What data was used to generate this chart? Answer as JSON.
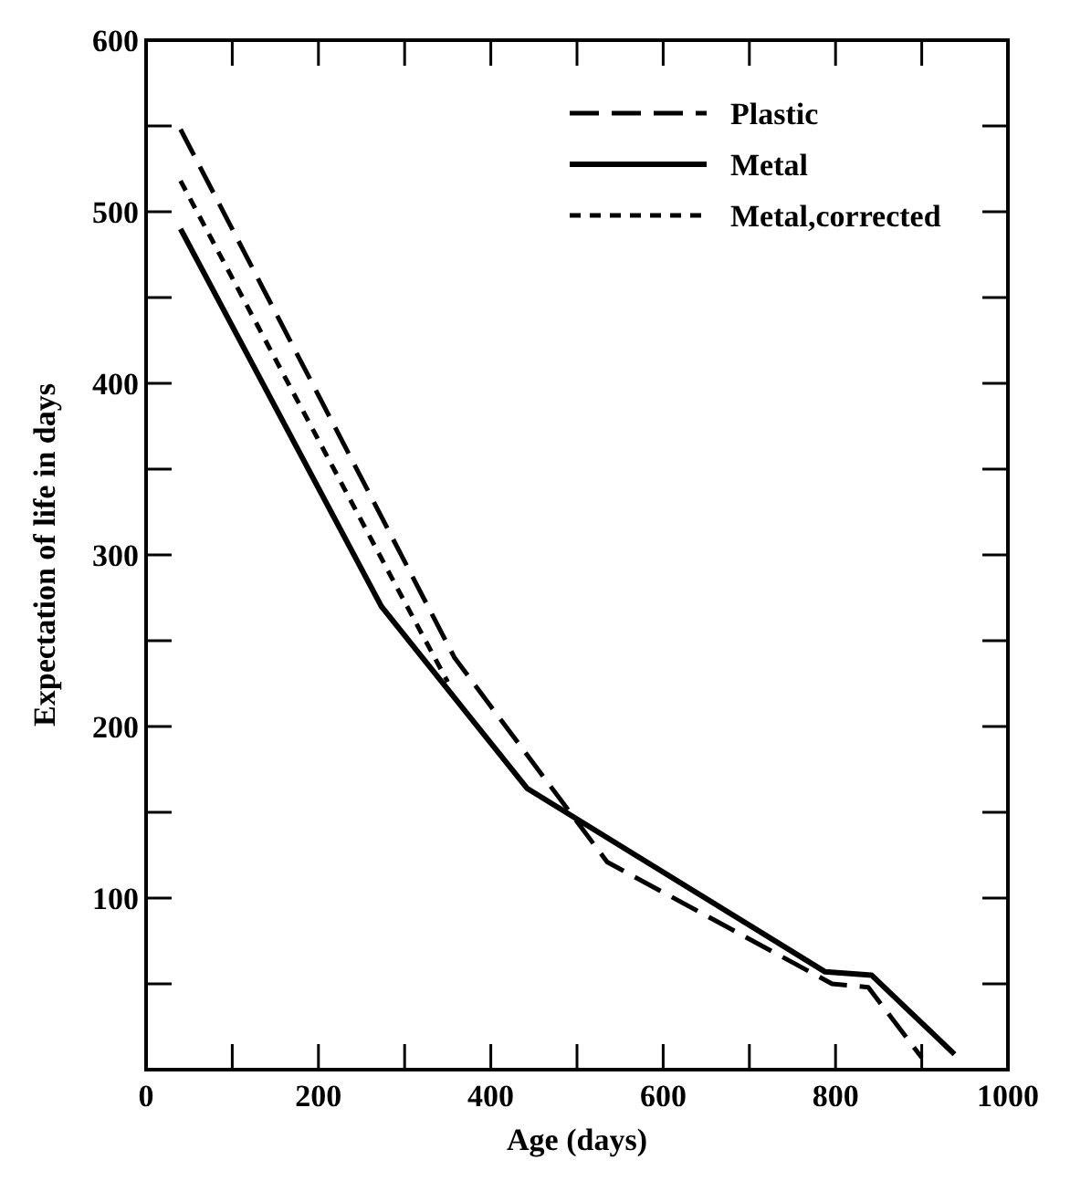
{
  "chart_data": {
    "type": "line",
    "xlabel": "Age (days)",
    "ylabel": "Expectation of life in days",
    "xlim": [
      0,
      1000
    ],
    "ylim": [
      0,
      600
    ],
    "xticks": [
      0,
      {
        "value": 100,
        "label": null
      },
      200,
      {
        "value": 300,
        "label": null
      },
      400,
      {
        "value": 500,
        "label": null
      },
      600,
      {
        "value": 700,
        "label": null
      },
      800,
      {
        "value": 900,
        "label": null
      },
      1000
    ],
    "yticks": [
      {
        "value": 50,
        "label": null
      },
      100,
      {
        "value": 150,
        "label": null
      },
      200,
      {
        "value": 250,
        "label": null
      },
      300,
      {
        "value": 350,
        "label": null
      },
      400,
      {
        "value": 450,
        "label": null
      },
      500,
      {
        "value": 550,
        "label": null
      },
      600
    ],
    "grid": false,
    "legend": "top right",
    "marker": "none",
    "series": [
      {
        "name": "Plastic",
        "color": "#000000",
        "line_style": "dashed",
        "x": [
          40,
          358,
          535,
          796,
          838,
          900
        ],
        "values": [
          548,
          240,
          121,
          50,
          48,
          7
        ]
      },
      {
        "name": "Metal",
        "color": "#000000",
        "line_style": "solid",
        "x": [
          40,
          273,
          442,
          788,
          842,
          938
        ],
        "values": [
          490,
          270,
          164,
          57,
          55,
          9
        ]
      },
      {
        "name": "Metal,corrected",
        "color": "#000000",
        "line_style": "dotted",
        "x": [
          40,
          290,
          350
        ],
        "values": [
          518,
          282,
          226
        ]
      }
    ]
  }
}
